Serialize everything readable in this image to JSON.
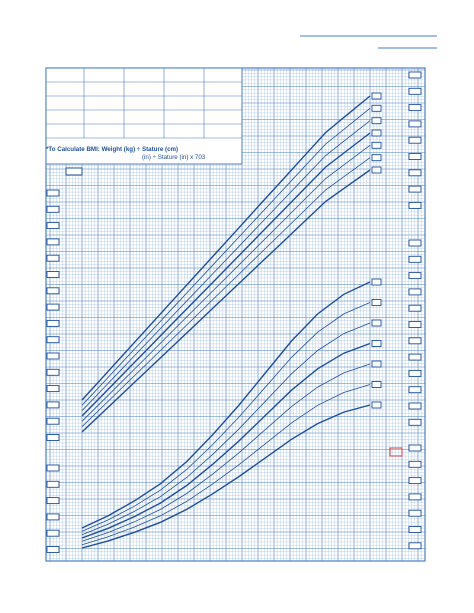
{
  "bmi_formula": {
    "line1": "*To Calculate BMI: Weight (kg) ÷ Stature (cm)",
    "line2": "(in) ÷ Stature (in) x 703"
  },
  "colors": {
    "grid_line": "#8fb3dc",
    "grid_major": "#4a7fc1",
    "curve": "#1e4f9b",
    "red_marker": "#d23a3a"
  },
  "chart_data": [
    {
      "type": "line",
      "series": [
        {
          "values": [
            0.0,
            0.08,
            0.16,
            0.24,
            0.32,
            0.4,
            0.48,
            0.56,
            0.64,
            0.72,
            0.8,
            0.88,
            0.94,
            1.0
          ]
        },
        {
          "values": [
            0.0,
            0.08,
            0.16,
            0.24,
            0.32,
            0.4,
            0.48,
            0.56,
            0.64,
            0.72,
            0.8,
            0.88,
            0.94,
            1.0
          ]
        },
        {
          "values": [
            0.0,
            0.08,
            0.16,
            0.24,
            0.32,
            0.4,
            0.48,
            0.56,
            0.64,
            0.72,
            0.8,
            0.88,
            0.94,
            1.0
          ]
        },
        {
          "values": [
            0.0,
            0.08,
            0.16,
            0.24,
            0.32,
            0.4,
            0.48,
            0.56,
            0.64,
            0.72,
            0.8,
            0.88,
            0.94,
            1.0
          ]
        },
        {
          "values": [
            0.0,
            0.08,
            0.16,
            0.24,
            0.32,
            0.4,
            0.48,
            0.56,
            0.64,
            0.72,
            0.8,
            0.88,
            0.94,
            1.0
          ]
        },
        {
          "values": [
            0.0,
            0.08,
            0.16,
            0.24,
            0.32,
            0.4,
            0.48,
            0.56,
            0.64,
            0.72,
            0.8,
            0.88,
            0.94,
            1.0
          ]
        },
        {
          "values": [
            0.0,
            0.08,
            0.16,
            0.24,
            0.32,
            0.4,
            0.48,
            0.56,
            0.64,
            0.72,
            0.8,
            0.88,
            0.94,
            1.0
          ]
        }
      ]
    },
    {
      "type": "line",
      "series": [
        {
          "values": [
            0.0,
            0.05,
            0.11,
            0.18,
            0.27,
            0.38,
            0.5,
            0.63,
            0.76,
            0.87,
            0.95,
            1.0
          ]
        },
        {
          "values": [
            0.0,
            0.05,
            0.11,
            0.18,
            0.27,
            0.38,
            0.5,
            0.63,
            0.76,
            0.87,
            0.95,
            1.0
          ]
        },
        {
          "values": [
            0.0,
            0.05,
            0.11,
            0.18,
            0.27,
            0.38,
            0.5,
            0.63,
            0.76,
            0.87,
            0.95,
            1.0
          ]
        },
        {
          "values": [
            0.0,
            0.05,
            0.11,
            0.18,
            0.27,
            0.38,
            0.5,
            0.63,
            0.76,
            0.87,
            0.95,
            1.0
          ]
        },
        {
          "values": [
            0.0,
            0.05,
            0.11,
            0.18,
            0.27,
            0.38,
            0.5,
            0.63,
            0.76,
            0.87,
            0.95,
            1.0
          ]
        },
        {
          "values": [
            0.0,
            0.05,
            0.11,
            0.18,
            0.27,
            0.38,
            0.5,
            0.63,
            0.76,
            0.87,
            0.95,
            1.0
          ]
        },
        {
          "values": [
            0.0,
            0.05,
            0.11,
            0.18,
            0.27,
            0.38,
            0.5,
            0.63,
            0.76,
            0.87,
            0.95,
            1.0
          ]
        }
      ]
    }
  ]
}
